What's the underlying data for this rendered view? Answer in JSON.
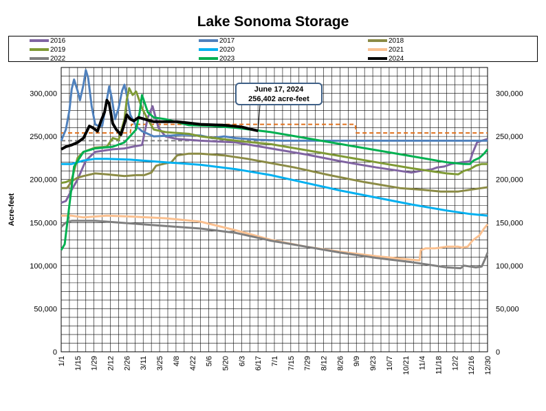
{
  "chart_data": {
    "type": "line",
    "title": "Lake Sonoma Storage",
    "ylabel": "Acre-feet",
    "xlabel": "",
    "ylim": [
      0,
      330000
    ],
    "x_tick_labels": [
      "1/1",
      "1/15",
      "1/29",
      "2/12",
      "2/26",
      "3/11",
      "3/25",
      "4/8",
      "4/22",
      "5/6",
      "5/20",
      "6/3",
      "6/17",
      "7/1",
      "7/15",
      "7/29",
      "8/12",
      "8/26",
      "9/9",
      "9/23",
      "10/7",
      "10/21",
      "11/4",
      "11/18",
      "12/2",
      "12/16",
      "12/30"
    ],
    "y_ticks": [
      0,
      50000,
      100000,
      150000,
      200000,
      250000,
      300000
    ],
    "y_tick_labels": [
      "0",
      "50,000",
      "100,000",
      "150,000",
      "200,000",
      "250,000",
      "300,000"
    ],
    "grid": true,
    "legend_position": "top",
    "annotation": {
      "line1": "June 17, 2024",
      "line2": "256,402 acre-feet",
      "day": 169,
      "value": 256402
    },
    "reference_lines": [
      {
        "style": "dashed",
        "color": "#e0701c",
        "points": [
          [
            1,
            254000
          ],
          [
            60,
            254000
          ],
          [
            61,
            264000
          ],
          [
            252,
            264000
          ],
          [
            253,
            254000
          ],
          [
            365,
            254000
          ]
        ]
      },
      {
        "style": "dashed",
        "color": "#7f7f7f",
        "points": [
          [
            1,
            245000
          ],
          [
            365,
            245000
          ]
        ]
      }
    ],
    "series": [
      {
        "name": "2016",
        "color": "#8064a2",
        "width": 3,
        "points": [
          [
            1,
            173000
          ],
          [
            5,
            175000
          ],
          [
            10,
            188000
          ],
          [
            15,
            200000
          ],
          [
            22,
            222000
          ],
          [
            30,
            232000
          ],
          [
            45,
            235000
          ],
          [
            55,
            236000
          ],
          [
            62,
            238000
          ],
          [
            70,
            240000
          ],
          [
            75,
            272000
          ],
          [
            79,
            285000
          ],
          [
            84,
            260000
          ],
          [
            90,
            250000
          ],
          [
            100,
            247000
          ],
          [
            120,
            245000
          ],
          [
            150,
            243000
          ],
          [
            180,
            236000
          ],
          [
            210,
            229000
          ],
          [
            240,
            221000
          ],
          [
            270,
            214000
          ],
          [
            300,
            208000
          ],
          [
            308,
            210000
          ],
          [
            318,
            212000
          ],
          [
            322,
            214000
          ],
          [
            328,
            215000
          ],
          [
            334,
            218000
          ],
          [
            343,
            220000
          ],
          [
            350,
            221000
          ],
          [
            352,
            230000
          ],
          [
            356,
            243000
          ],
          [
            360,
            245000
          ],
          [
            365,
            247000
          ]
        ]
      },
      {
        "name": "2017",
        "color": "#4f81bd",
        "width": 3,
        "points": [
          [
            1,
            245000
          ],
          [
            5,
            258000
          ],
          [
            8,
            280000
          ],
          [
            10,
            305000
          ],
          [
            12,
            316000
          ],
          [
            15,
            303000
          ],
          [
            17,
            292000
          ],
          [
            20,
            310000
          ],
          [
            22,
            327000
          ],
          [
            24,
            318000
          ],
          [
            27,
            285000
          ],
          [
            30,
            264000
          ],
          [
            33,
            262000
          ],
          [
            36,
            262000
          ],
          [
            39,
            285000
          ],
          [
            42,
            308000
          ],
          [
            44,
            296000
          ],
          [
            47,
            270000
          ],
          [
            50,
            283000
          ],
          [
            53,
            303000
          ],
          [
            55,
            310000
          ],
          [
            57,
            298000
          ],
          [
            60,
            275000
          ],
          [
            65,
            262000
          ],
          [
            70,
            256000
          ],
          [
            80,
            250000
          ],
          [
            95,
            251000
          ],
          [
            105,
            252000
          ],
          [
            120,
            251000
          ],
          [
            130,
            248000
          ],
          [
            140,
            250000
          ],
          [
            150,
            248000
          ],
          [
            170,
            246000
          ],
          [
            190,
            245000
          ],
          [
            365,
            245000
          ]
        ]
      },
      {
        "name": "2018",
        "color": "#8b8b45",
        "width": 3,
        "points": [
          [
            1,
            190000
          ],
          [
            6,
            190000
          ],
          [
            10,
            198000
          ],
          [
            15,
            202000
          ],
          [
            20,
            204000
          ],
          [
            30,
            207000
          ],
          [
            40,
            206000
          ],
          [
            55,
            204000
          ],
          [
            65,
            205000
          ],
          [
            72,
            205000
          ],
          [
            78,
            208000
          ],
          [
            82,
            216000
          ],
          [
            88,
            218000
          ],
          [
            95,
            220000
          ],
          [
            100,
            228000
          ],
          [
            110,
            230000
          ],
          [
            120,
            230000
          ],
          [
            140,
            228000
          ],
          [
            160,
            224000
          ],
          [
            180,
            219000
          ],
          [
            200,
            214000
          ],
          [
            230,
            205000
          ],
          [
            260,
            197000
          ],
          [
            290,
            190000
          ],
          [
            310,
            188000
          ],
          [
            325,
            186000
          ],
          [
            340,
            186000
          ],
          [
            350,
            188000
          ],
          [
            360,
            190000
          ],
          [
            365,
            191000
          ]
        ]
      },
      {
        "name": "2019",
        "color": "#7f9a35",
        "width": 3,
        "points": [
          [
            1,
            196000
          ],
          [
            5,
            197000
          ],
          [
            10,
            200000
          ],
          [
            15,
            225000
          ],
          [
            20,
            232000
          ],
          [
            30,
            237000
          ],
          [
            40,
            238000
          ],
          [
            45,
            248000
          ],
          [
            50,
            246000
          ],
          [
            55,
            270000
          ],
          [
            57,
            293000
          ],
          [
            59,
            306000
          ],
          [
            62,
            298000
          ],
          [
            65,
            302000
          ],
          [
            70,
            283000
          ],
          [
            74,
            272000
          ],
          [
            80,
            258000
          ],
          [
            90,
            255000
          ],
          [
            110,
            253000
          ],
          [
            120,
            250000
          ],
          [
            150,
            245000
          ],
          [
            180,
            241000
          ],
          [
            210,
            234000
          ],
          [
            240,
            227000
          ],
          [
            270,
            220000
          ],
          [
            300,
            213000
          ],
          [
            330,
            207000
          ],
          [
            340,
            206000
          ],
          [
            345,
            210000
          ],
          [
            350,
            212000
          ],
          [
            355,
            216000
          ],
          [
            360,
            218000
          ],
          [
            365,
            218000
          ]
        ]
      },
      {
        "name": "2020",
        "color": "#00b0f0",
        "width": 3,
        "points": [
          [
            1,
            218000
          ],
          [
            10,
            218000
          ],
          [
            20,
            222000
          ],
          [
            30,
            224000
          ],
          [
            40,
            224000
          ],
          [
            60,
            223000
          ],
          [
            90,
            220000
          ],
          [
            120,
            217000
          ],
          [
            150,
            212000
          ],
          [
            180,
            205000
          ],
          [
            210,
            196000
          ],
          [
            240,
            187000
          ],
          [
            270,
            179000
          ],
          [
            300,
            171000
          ],
          [
            330,
            164000
          ],
          [
            350,
            160000
          ],
          [
            365,
            158000
          ]
        ]
      },
      {
        "name": "2021",
        "color": "#fac090",
        "width": 3,
        "points": [
          [
            1,
            158000
          ],
          [
            10,
            158000
          ],
          [
            20,
            156000
          ],
          [
            30,
            157000
          ],
          [
            40,
            158000
          ],
          [
            60,
            157000
          ],
          [
            90,
            155000
          ],
          [
            120,
            151000
          ],
          [
            150,
            141000
          ],
          [
            180,
            130000
          ],
          [
            210,
            122000
          ],
          [
            240,
            116000
          ],
          [
            270,
            111000
          ],
          [
            300,
            107000
          ],
          [
            307,
            106000
          ],
          [
            308,
            118000
          ],
          [
            312,
            120000
          ],
          [
            320,
            120000
          ],
          [
            325,
            121000
          ],
          [
            330,
            122000
          ],
          [
            340,
            122000
          ],
          [
            343,
            121000
          ],
          [
            348,
            122000
          ],
          [
            352,
            129000
          ],
          [
            358,
            135000
          ],
          [
            362,
            143000
          ],
          [
            365,
            148000
          ]
        ]
      },
      {
        "name": "2022",
        "color": "#7f7f7f",
        "width": 3,
        "points": [
          [
            1,
            145000
          ],
          [
            5,
            150000
          ],
          [
            10,
            152000
          ],
          [
            30,
            152000
          ],
          [
            60,
            149000
          ],
          [
            90,
            146000
          ],
          [
            120,
            143000
          ],
          [
            150,
            138000
          ],
          [
            180,
            129000
          ],
          [
            210,
            122000
          ],
          [
            240,
            115000
          ],
          [
            270,
            109000
          ],
          [
            300,
            104000
          ],
          [
            330,
            98000
          ],
          [
            342,
            97000
          ],
          [
            345,
            100000
          ],
          [
            355,
            98000
          ],
          [
            360,
            99000
          ],
          [
            363,
            108000
          ],
          [
            365,
            115000
          ]
        ]
      },
      {
        "name": "2023",
        "color": "#00b050",
        "width": 3,
        "points": [
          [
            1,
            118000
          ],
          [
            4,
            125000
          ],
          [
            8,
            170000
          ],
          [
            12,
            215000
          ],
          [
            20,
            232000
          ],
          [
            30,
            236000
          ],
          [
            45,
            238000
          ],
          [
            55,
            243000
          ],
          [
            65,
            258000
          ],
          [
            68,
            278000
          ],
          [
            70,
            298000
          ],
          [
            72,
            290000
          ],
          [
            75,
            278000
          ],
          [
            80,
            272000
          ],
          [
            90,
            270000
          ],
          [
            110,
            263000
          ],
          [
            130,
            262000
          ],
          [
            150,
            260000
          ],
          [
            180,
            255000
          ],
          [
            210,
            248000
          ],
          [
            240,
            241000
          ],
          [
            270,
            234000
          ],
          [
            300,
            227000
          ],
          [
            330,
            220000
          ],
          [
            345,
            218000
          ],
          [
            350,
            218000
          ],
          [
            353,
            222000
          ],
          [
            358,
            225000
          ],
          [
            362,
            230000
          ],
          [
            365,
            235000
          ]
        ]
      },
      {
        "name": "2024",
        "color": "#000000",
        "width": 4,
        "points": [
          [
            1,
            235000
          ],
          [
            5,
            238000
          ],
          [
            10,
            240000
          ],
          [
            15,
            243000
          ],
          [
            20,
            248000
          ],
          [
            25,
            262000
          ],
          [
            28,
            260000
          ],
          [
            32,
            256000
          ],
          [
            35,
            268000
          ],
          [
            38,
            278000
          ],
          [
            40,
            292000
          ],
          [
            42,
            288000
          ],
          [
            45,
            265000
          ],
          [
            48,
            258000
          ],
          [
            52,
            252000
          ],
          [
            55,
            265000
          ],
          [
            57,
            275000
          ],
          [
            60,
            270000
          ],
          [
            63,
            268000
          ],
          [
            67,
            272000
          ],
          [
            72,
            270000
          ],
          [
            80,
            267000
          ],
          [
            100,
            267000
          ],
          [
            120,
            264000
          ],
          [
            140,
            263000
          ],
          [
            155,
            261000
          ],
          [
            169,
            256402
          ]
        ]
      }
    ]
  }
}
